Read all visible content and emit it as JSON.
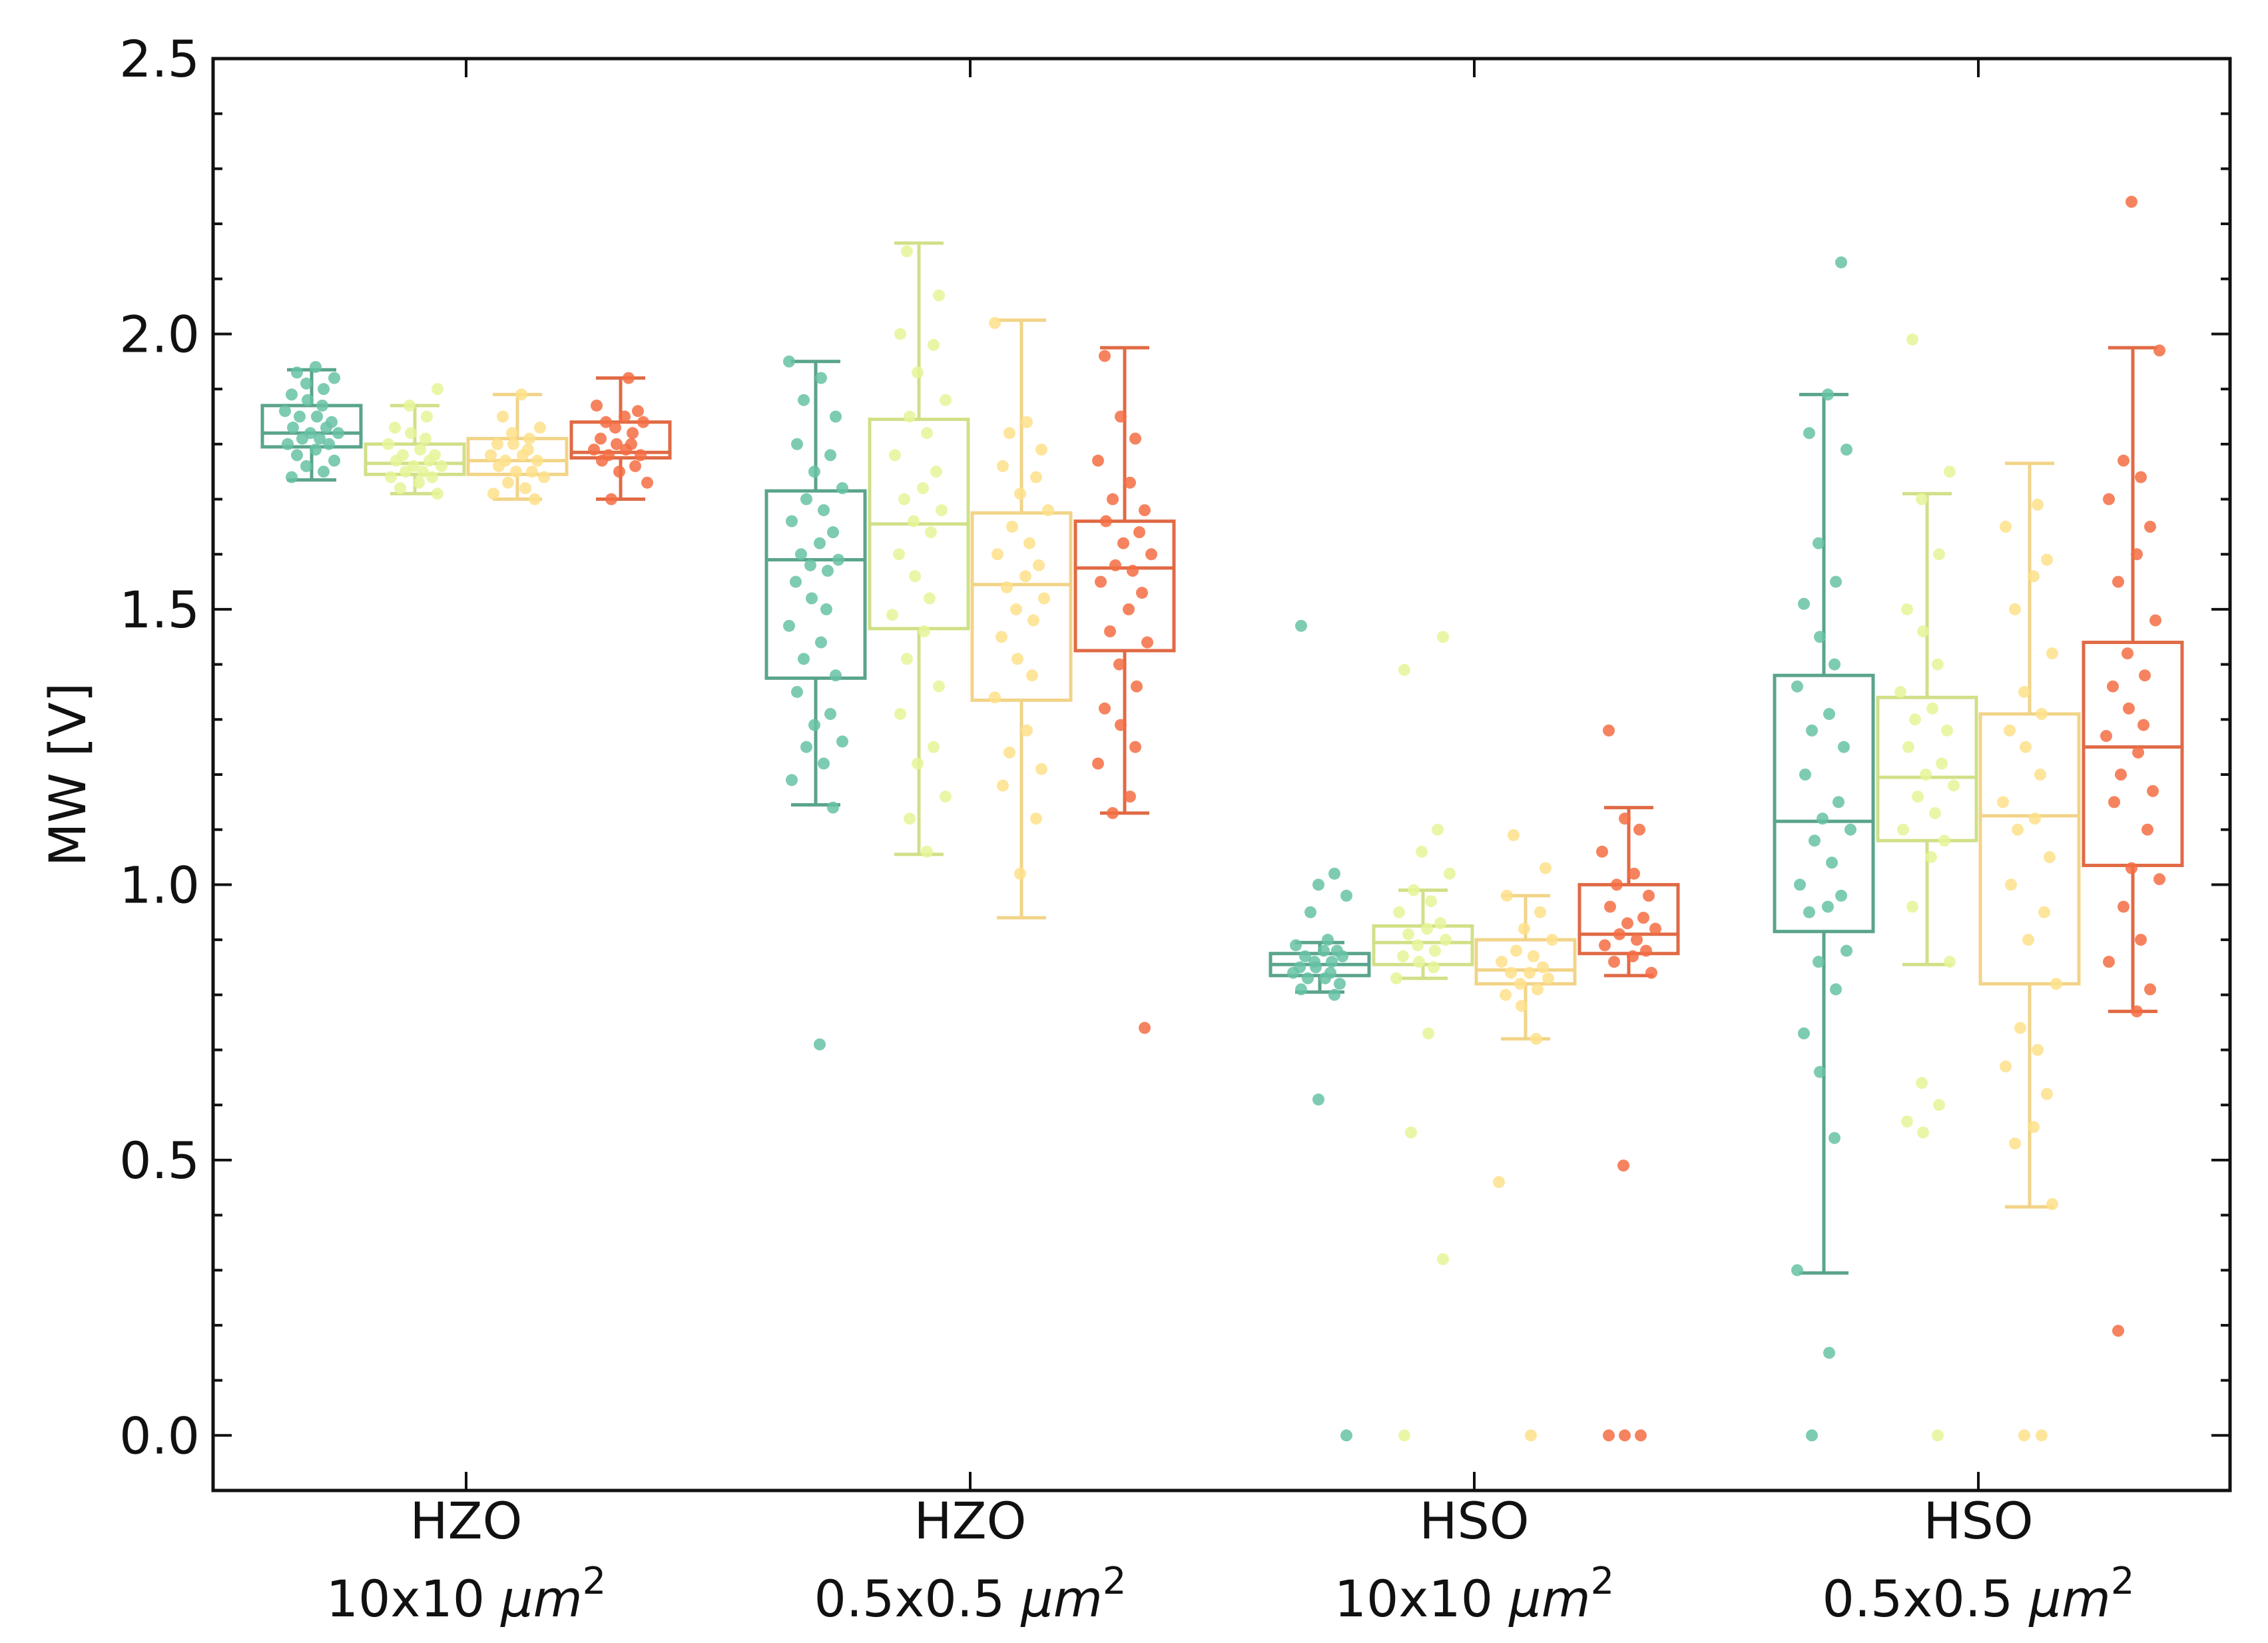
{
  "chart_data": {
    "type": "box",
    "title": "",
    "xlabel": "",
    "ylabel": "MW [V]",
    "ylim": [
      -0.1,
      2.5
    ],
    "yticks": [
      {
        "value": 0.0,
        "label": "0.0"
      },
      {
        "value": 0.5,
        "label": "0.5"
      },
      {
        "value": 1.0,
        "label": "1.0"
      },
      {
        "value": 1.5,
        "label": "1.5"
      },
      {
        "value": 2.0,
        "label": "2.0"
      },
      {
        "value": 2.5,
        "label": "2.5"
      }
    ],
    "categories": [
      {
        "material": "HZO",
        "size": "10x10",
        "unit": "μm",
        "exp": "2"
      },
      {
        "material": "HZO",
        "size": "0.5x0.5",
        "unit": "μm",
        "exp": "2"
      },
      {
        "material": "HSO",
        "size": "10x10",
        "unit": "μm",
        "exp": "2"
      },
      {
        "material": "HSO",
        "size": "0.5x0.5",
        "unit": "μm",
        "exp": "2"
      }
    ],
    "series_colors": [
      "#66c2a5",
      "#e6f598",
      "#fee08b",
      "#f46d43"
    ],
    "box_colors": [
      "#5aa48c",
      "#d0e088",
      "#f2d488",
      "#e06a45"
    ],
    "groups": [
      {
        "boxes": [
          {
            "min": 1.735,
            "q1": 1.795,
            "median": 1.82,
            "q3": 1.87,
            "max": 1.935,
            "points": [
              1.74,
              1.75,
              1.76,
              1.77,
              1.78,
              1.79,
              1.8,
              1.8,
              1.81,
              1.81,
              1.82,
              1.82,
              1.83,
              1.83,
              1.84,
              1.85,
              1.85,
              1.86,
              1.87,
              1.88,
              1.89,
              1.9,
              1.91,
              1.92,
              1.93,
              1.94
            ]
          },
          {
            "min": 1.71,
            "q1": 1.745,
            "median": 1.765,
            "q3": 1.8,
            "max": 1.87,
            "points": [
              1.71,
              1.72,
              1.73,
              1.74,
              1.74,
              1.75,
              1.75,
              1.76,
              1.76,
              1.77,
              1.77,
              1.78,
              1.78,
              1.79,
              1.8,
              1.81,
              1.82,
              1.83,
              1.85,
              1.87,
              1.9
            ]
          },
          {
            "min": 1.7,
            "q1": 1.745,
            "median": 1.77,
            "q3": 1.81,
            "max": 1.89,
            "points": [
              1.7,
              1.71,
              1.72,
              1.73,
              1.74,
              1.75,
              1.75,
              1.76,
              1.77,
              1.77,
              1.78,
              1.78,
              1.79,
              1.8,
              1.8,
              1.81,
              1.82,
              1.83,
              1.85,
              1.89
            ]
          },
          {
            "min": 1.7,
            "q1": 1.775,
            "median": 1.785,
            "q3": 1.84,
            "max": 1.92,
            "points": [
              1.7,
              1.73,
              1.75,
              1.76,
              1.77,
              1.78,
              1.78,
              1.79,
              1.79,
              1.8,
              1.8,
              1.81,
              1.82,
              1.83,
              1.84,
              1.84,
              1.85,
              1.86,
              1.87,
              1.92
            ]
          }
        ]
      },
      {
        "boxes": [
          {
            "min": 1.145,
            "q1": 1.375,
            "median": 1.59,
            "q3": 1.715,
            "max": 1.95,
            "points": [
              0.71,
              1.14,
              1.19,
              1.22,
              1.25,
              1.26,
              1.29,
              1.31,
              1.35,
              1.38,
              1.41,
              1.44,
              1.47,
              1.5,
              1.52,
              1.55,
              1.57,
              1.58,
              1.59,
              1.6,
              1.62,
              1.64,
              1.66,
              1.68,
              1.7,
              1.72,
              1.75,
              1.78,
              1.8,
              1.85,
              1.88,
              1.92,
              1.95
            ]
          },
          {
            "min": 1.055,
            "q1": 1.465,
            "median": 1.655,
            "q3": 1.845,
            "max": 2.165,
            "points": [
              1.06,
              1.12,
              1.16,
              1.22,
              1.25,
              1.31,
              1.36,
              1.41,
              1.46,
              1.49,
              1.52,
              1.56,
              1.6,
              1.64,
              1.66,
              1.68,
              1.7,
              1.72,
              1.75,
              1.78,
              1.82,
              1.85,
              1.88,
              1.93,
              1.98,
              2.0,
              2.07,
              2.15
            ]
          },
          {
            "min": 0.94,
            "q1": 1.335,
            "median": 1.545,
            "q3": 1.675,
            "max": 2.025,
            "points": [
              1.02,
              1.12,
              1.18,
              1.21,
              1.24,
              1.28,
              1.34,
              1.38,
              1.41,
              1.45,
              1.48,
              1.5,
              1.52,
              1.54,
              1.56,
              1.58,
              1.6,
              1.62,
              1.65,
              1.68,
              1.71,
              1.74,
              1.76,
              1.79,
              1.82,
              1.84,
              2.02
            ]
          },
          {
            "min": 1.13,
            "q1": 1.425,
            "median": 1.575,
            "q3": 1.66,
            "max": 1.975,
            "points": [
              0.74,
              1.13,
              1.16,
              1.22,
              1.25,
              1.29,
              1.32,
              1.36,
              1.4,
              1.44,
              1.46,
              1.5,
              1.53,
              1.55,
              1.57,
              1.58,
              1.6,
              1.62,
              1.64,
              1.66,
              1.68,
              1.7,
              1.73,
              1.77,
              1.81,
              1.85,
              1.96
            ]
          }
        ]
      },
      {
        "boxes": [
          {
            "min": 0.805,
            "q1": 0.835,
            "median": 0.855,
            "q3": 0.875,
            "max": 0.895,
            "points": [
              0.0,
              0.61,
              0.8,
              0.81,
              0.82,
              0.83,
              0.83,
              0.84,
              0.84,
              0.85,
              0.85,
              0.86,
              0.86,
              0.87,
              0.87,
              0.88,
              0.88,
              0.89,
              0.9,
              0.95,
              0.98,
              1.0,
              1.02,
              1.47
            ]
          },
          {
            "min": 0.83,
            "q1": 0.855,
            "median": 0.895,
            "q3": 0.925,
            "max": 0.99,
            "points": [
              0.0,
              0.32,
              0.55,
              0.73,
              0.83,
              0.85,
              0.86,
              0.87,
              0.88,
              0.89,
              0.9,
              0.91,
              0.92,
              0.93,
              0.95,
              0.97,
              0.99,
              1.02,
              1.06,
              1.1,
              1.39,
              1.45
            ]
          },
          {
            "min": 0.72,
            "q1": 0.82,
            "median": 0.845,
            "q3": 0.9,
            "max": 0.98,
            "points": [
              0.0,
              0.46,
              0.72,
              0.78,
              0.8,
              0.81,
              0.82,
              0.83,
              0.84,
              0.84,
              0.85,
              0.86,
              0.87,
              0.88,
              0.9,
              0.92,
              0.95,
              0.98,
              1.03,
              1.09
            ]
          },
          {
            "min": 0.835,
            "q1": 0.875,
            "median": 0.91,
            "q3": 1.0,
            "max": 1.14,
            "points": [
              0.0,
              0.0,
              0.0,
              0.49,
              0.84,
              0.86,
              0.87,
              0.88,
              0.89,
              0.9,
              0.91,
              0.92,
              0.93,
              0.94,
              0.96,
              0.98,
              1.0,
              1.02,
              1.06,
              1.1,
              1.12,
              1.28
            ]
          }
        ]
      },
      {
        "boxes": [
          {
            "min": 0.295,
            "q1": 0.915,
            "median": 1.115,
            "q3": 1.38,
            "max": 1.89,
            "points": [
              0.0,
              0.15,
              0.3,
              0.54,
              0.66,
              0.73,
              0.81,
              0.86,
              0.88,
              0.95,
              0.96,
              0.98,
              1.0,
              1.04,
              1.08,
              1.1,
              1.12,
              1.15,
              1.2,
              1.25,
              1.28,
              1.31,
              1.36,
              1.4,
              1.45,
              1.51,
              1.55,
              1.62,
              1.79,
              1.82,
              1.89,
              2.13
            ]
          },
          {
            "min": 0.855,
            "q1": 1.08,
            "median": 1.195,
            "q3": 1.34,
            "max": 1.71,
            "points": [
              0.0,
              0.55,
              0.57,
              0.6,
              0.64,
              0.86,
              0.96,
              1.05,
              1.08,
              1.1,
              1.13,
              1.16,
              1.18,
              1.2,
              1.22,
              1.25,
              1.28,
              1.3,
              1.32,
              1.35,
              1.4,
              1.46,
              1.5,
              1.6,
              1.7,
              1.75,
              1.99
            ]
          },
          {
            "min": 0.415,
            "q1": 0.82,
            "median": 1.125,
            "q3": 1.31,
            "max": 1.765,
            "points": [
              0.0,
              0.0,
              0.42,
              0.53,
              0.56,
              0.62,
              0.67,
              0.7,
              0.74,
              0.82,
              0.9,
              0.95,
              1.0,
              1.05,
              1.1,
              1.12,
              1.15,
              1.2,
              1.25,
              1.28,
              1.31,
              1.35,
              1.42,
              1.5,
              1.56,
              1.59,
              1.65,
              1.69
            ]
          },
          {
            "min": 0.77,
            "q1": 1.035,
            "median": 1.25,
            "q3": 1.44,
            "max": 1.975,
            "points": [
              0.19,
              0.77,
              0.81,
              0.86,
              0.9,
              0.96,
              1.01,
              1.03,
              1.1,
              1.15,
              1.17,
              1.2,
              1.24,
              1.27,
              1.29,
              1.32,
              1.36,
              1.38,
              1.42,
              1.48,
              1.55,
              1.6,
              1.65,
              1.7,
              1.74,
              1.77,
              1.97,
              2.24
            ]
          }
        ]
      }
    ]
  }
}
